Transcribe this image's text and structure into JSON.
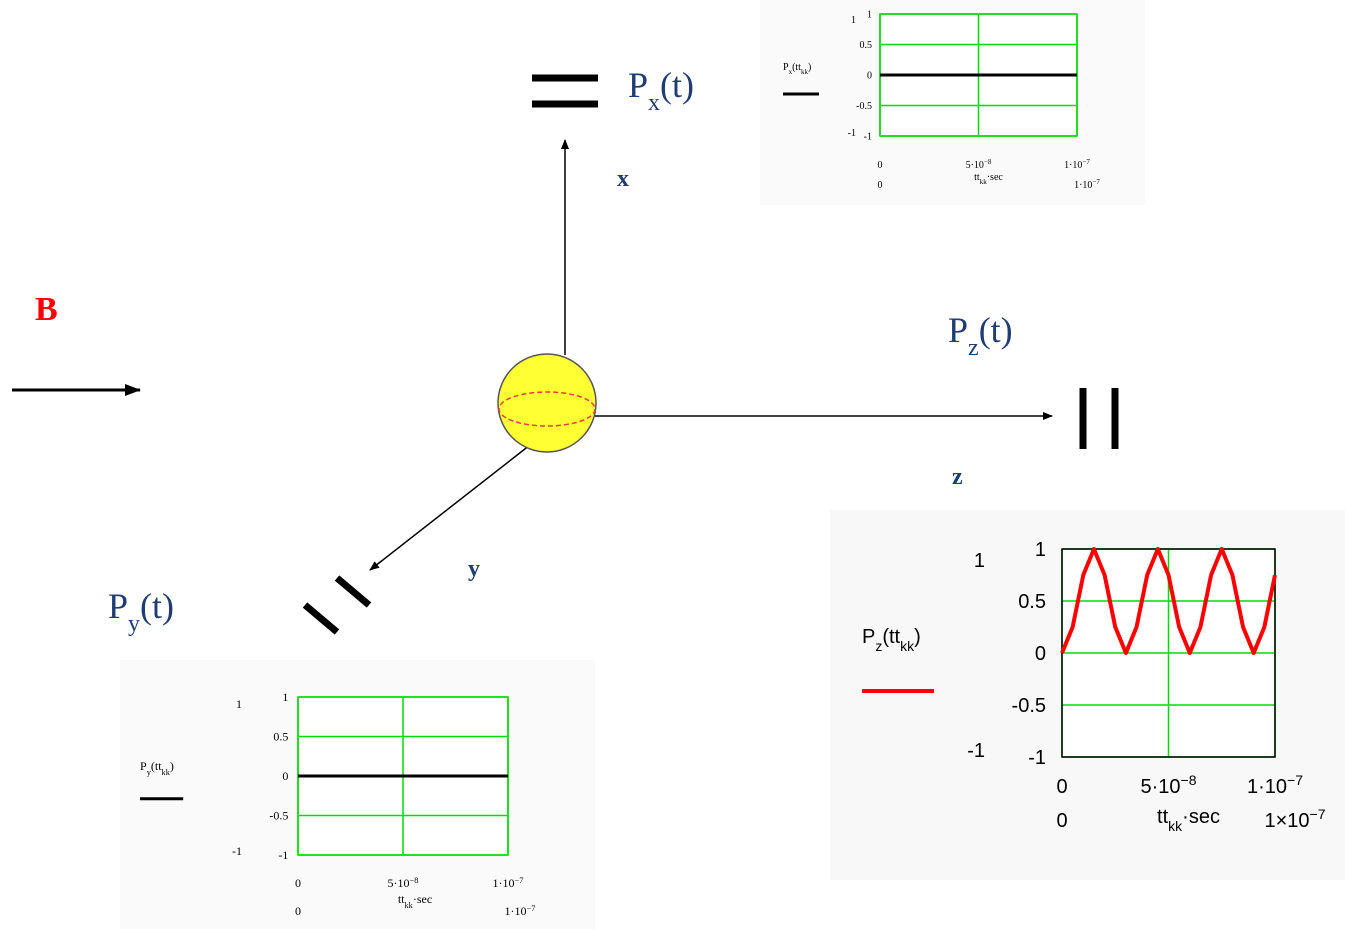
{
  "B": "B",
  "axes": {
    "x": "x",
    "y": "y",
    "z": "z"
  },
  "signals": {
    "x": [
      "P",
      "x",
      "(t)"
    ],
    "y": [
      "P",
      "y",
      "(t)"
    ],
    "z": [
      "P",
      "z",
      "(t)"
    ]
  },
  "plots": [
    {
      "type": "line",
      "ylabel": [
        "P",
        "x",
        "(tt",
        "kk",
        ")"
      ],
      "xlabel": [
        "tt",
        "kk",
        "·sec"
      ],
      "ylim": [
        -1,
        1
      ],
      "yticks": [
        1,
        0.5,
        0,
        -0.5,
        -1
      ],
      "xlim": [
        0,
        1e-07
      ],
      "xticks": [
        {
          "value": 0,
          "label": "0"
        },
        {
          "value": 5e-08,
          "label": "5·10",
          "exponent": "−8"
        },
        {
          "value": 1e-07,
          "label": "1·10",
          "exponent": "−7"
        }
      ],
      "xlim_labels": [
        {
          "label": "0"
        },
        {
          "label": "1·10",
          "exponent": "−7"
        }
      ],
      "grid": true,
      "series": [
        {
          "color": "#000000",
          "x": [
            0,
            1e-07
          ],
          "values": [
            0,
            0
          ]
        }
      ]
    },
    {
      "type": "line",
      "ylabel": [
        "P",
        "y",
        "(tt",
        "kk",
        ")"
      ],
      "xlabel": [
        "tt",
        "kk",
        "·sec"
      ],
      "ylim": [
        -1,
        1
      ],
      "yticks": [
        1,
        0.5,
        0,
        -0.5,
        -1
      ],
      "xlim": [
        0,
        1e-07
      ],
      "xticks": [
        {
          "value": 0,
          "label": "0"
        },
        {
          "value": 5e-08,
          "label": "5·10",
          "exponent": "−8"
        },
        {
          "value": 1e-07,
          "label": "1·10",
          "exponent": "−7"
        }
      ],
      "xlim_labels": [
        {
          "label": "0"
        },
        {
          "label": "1·10",
          "exponent": "−7"
        }
      ],
      "grid": true,
      "series": [
        {
          "color": "#000000",
          "x": [
            0,
            1e-07
          ],
          "values": [
            0,
            0
          ]
        }
      ]
    },
    {
      "type": "line",
      "ylabel": [
        "P",
        "z",
        "(tt",
        "kk",
        ")"
      ],
      "xlabel": [
        "tt",
        "kk",
        "·sec"
      ],
      "ylim": [
        -1,
        1
      ],
      "yticks": [
        1,
        0.5,
        0,
        -0.5,
        -1
      ],
      "xlim": [
        0,
        1e-07
      ],
      "xticks": [
        {
          "value": 0,
          "label": "0"
        },
        {
          "value": 5e-08,
          "label": "5·10",
          "exponent": "−8"
        },
        {
          "value": 1e-07,
          "label": "1·10",
          "exponent": "−7"
        }
      ],
      "xlim_labels": [
        {
          "label": "0"
        },
        {
          "label": "1×10",
          "exponent": "−7"
        }
      ],
      "grid": true,
      "series": [
        {
          "color": "#ff0000",
          "x": [
            0,
            5e-09,
            1e-08,
            1.5e-08,
            2e-08,
            2.5e-08,
            3e-08,
            3.5e-08,
            4e-08,
            4.5e-08,
            5e-08,
            5.5e-08,
            6e-08,
            6.5e-08,
            7e-08,
            7.5e-08,
            8e-08,
            8.5e-08,
            9e-08,
            9.5e-08,
            1e-07
          ],
          "values": [
            0,
            0.25,
            0.75,
            1,
            0.75,
            0.25,
            0,
            0.25,
            0.75,
            1,
            0.75,
            0.25,
            0,
            0.25,
            0.75,
            1,
            0.75,
            0.25,
            0,
            0.25,
            0.75
          ]
        }
      ]
    }
  ]
}
